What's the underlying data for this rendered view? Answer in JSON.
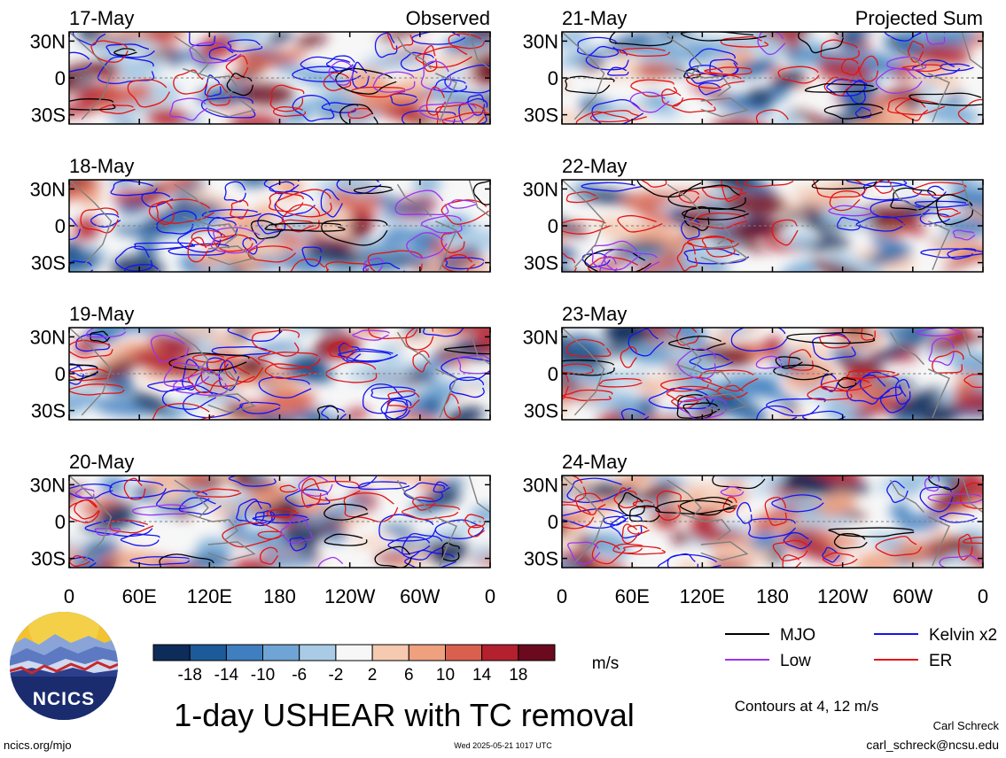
{
  "chart_data": {
    "type": "heatmap",
    "title": "1-day USHEAR with TC removal",
    "column_titles": [
      "Observed",
      "Projected Sum"
    ],
    "panels": [
      {
        "date": "17-May",
        "column": "Observed"
      },
      {
        "date": "18-May",
        "column": "Observed"
      },
      {
        "date": "19-May",
        "column": "Observed"
      },
      {
        "date": "20-May",
        "column": "Observed"
      },
      {
        "date": "21-May",
        "column": "Projected Sum"
      },
      {
        "date": "22-May",
        "column": "Projected Sum"
      },
      {
        "date": "23-May",
        "column": "Projected Sum"
      },
      {
        "date": "24-May",
        "column": "Projected Sum"
      }
    ],
    "x_ticks": [
      "0",
      "60E",
      "120E",
      "180",
      "120W",
      "60W",
      "0"
    ],
    "y_ticks": [
      "30N",
      "0",
      "30S"
    ],
    "colorbar": {
      "ticks": [
        "-18",
        "-14",
        "-10",
        "-6",
        "-2",
        "2",
        "6",
        "10",
        "14",
        "18"
      ],
      "unit": "m/s",
      "colors": [
        "#0d2c5a",
        "#1d5a99",
        "#3f7fbf",
        "#6fa4d4",
        "#a9cbe6",
        "#f7f7f7",
        "#f6c9b1",
        "#eea07f",
        "#d9604e",
        "#b3202f",
        "#6b0a1e"
      ]
    },
    "legend": [
      {
        "label": "MJO",
        "color": "#000000"
      },
      {
        "label": "Kelvin x2",
        "color": "#1414f0"
      },
      {
        "label": "Low",
        "color": "#9a33f0"
      },
      {
        "label": "ER",
        "color": "#e41414"
      }
    ],
    "contours_note": "Contours at 4, 12 m/s"
  },
  "logo_text": "NCICS",
  "footer": {
    "site": "ncics.org/mjo",
    "timestamp": "Wed 2025-05-21 1017 UTC",
    "author": "Carl Schreck",
    "email": "carl_schreck@ncsu.edu"
  }
}
